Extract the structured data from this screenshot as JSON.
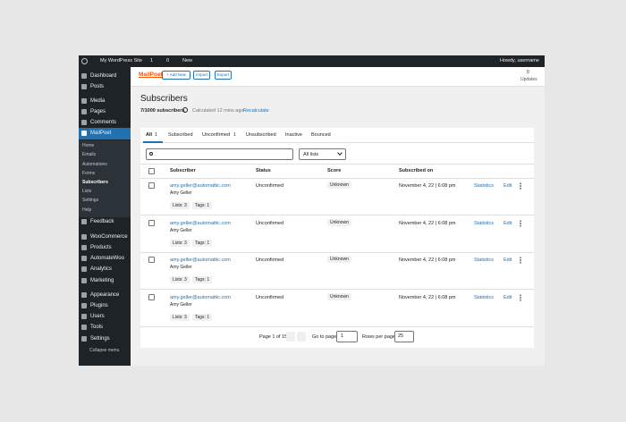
{
  "admin_bar": {
    "site": "My WordPress Site",
    "updates": 1,
    "comments": 0,
    "new": "New",
    "greeting": "Howdy, username"
  },
  "sidebar": {
    "items": [
      "Dashboard",
      "Posts",
      "Media",
      "Pages",
      "Comments",
      "MailPoet",
      "Feedback",
      "WooCommerce",
      "Products",
      "AutomateWoo",
      "Analytics",
      "Marketing",
      "Appearance",
      "Plugins",
      "Users",
      "Tools",
      "Settings"
    ],
    "submenu": [
      "Home",
      "Emails",
      "Automations",
      "Forms",
      "Subscribers",
      "Lists",
      "Settings",
      "Help"
    ],
    "collapse": "Collapse menu"
  },
  "header": {
    "logo": "MailPoet",
    "buttons": [
      "+ Add New",
      "Import",
      "Export"
    ],
    "updates_count": 0,
    "updates": "Updates"
  },
  "page": {
    "title": "Subscribers",
    "count": "7/1000 subscribers",
    "calculated": "Calculated 12 mins ago",
    "recalculate": "Recalculate"
  },
  "tabs": [
    {
      "label": "All",
      "count": 1
    },
    {
      "label": "Subscribed"
    },
    {
      "label": "Unconfirmed",
      "count": 1
    },
    {
      "label": "Unsubscribed"
    },
    {
      "label": "Inactive"
    },
    {
      "label": "Bounced"
    }
  ],
  "filter": {
    "lists": "All lists"
  },
  "table": {
    "columns": [
      "Subscriber",
      "Status",
      "Score",
      "Subscribed on"
    ],
    "rows": [
      {
        "email": "amy.geller@automattic.com",
        "name": "Amy Geller",
        "lists": "Lists: 3",
        "tags": "Tags: 1",
        "status": "Unconfirmed",
        "score": "Unknown",
        "date": "November 4, 22 | 6:08 pm",
        "stats": "Statistics",
        "edit": "Edit"
      },
      {
        "email": "amy.geller@automattic.com",
        "name": "Amy Geller",
        "lists": "Lists: 3",
        "tags": "Tags: 1",
        "status": "Unconfirmed",
        "score": "Unknown",
        "date": "November 4, 22 | 6:08 pm",
        "stats": "Statistics",
        "edit": "Edit"
      },
      {
        "email": "amy.geller@automattic.com",
        "name": "Amy Geller",
        "lists": "Lists: 3",
        "tags": "Tags: 1",
        "status": "Unconfirmed",
        "score": "Unknown",
        "date": "November 4, 22 | 6:08 pm",
        "stats": "Statistics",
        "edit": "Edit"
      },
      {
        "email": "amy.geller@automattic.com",
        "name": "Amy Geller",
        "lists": "Lists: 3",
        "tags": "Tags: 1",
        "status": "Unconfirmed",
        "score": "Unknown",
        "date": "November 4, 22 | 6:08 pm",
        "stats": "Statistics",
        "edit": "Edit"
      }
    ]
  },
  "pagination": {
    "page": "Page 1 of 15",
    "go_to": "Go to page",
    "page_input": 1,
    "rows_per_page": "Rows per page",
    "rows": 25
  }
}
